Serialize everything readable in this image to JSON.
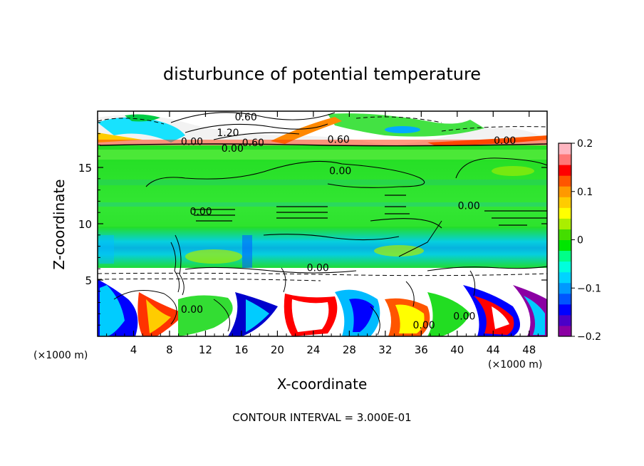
{
  "chart_data": {
    "type": "heatmap",
    "title": "disturbunce of potential temperature",
    "xlabel": "X-coordinate",
    "ylabel": "Z-coordinate",
    "x_unit": "(×1000 m)",
    "y_unit": "(×1000 m)",
    "xlim": [
      0,
      50
    ],
    "ylim": [
      0,
      20
    ],
    "x_ticks": [
      4,
      8,
      12,
      16,
      20,
      24,
      28,
      32,
      36,
      40,
      44,
      48
    ],
    "y_ticks": [
      5,
      10,
      15
    ],
    "colorbar": {
      "range": [
        -0.2,
        0.2
      ],
      "tick_labels": [
        "0.2",
        "0.1",
        "0",
        "−0.1",
        "−0.2"
      ],
      "tick_values": [
        0.2,
        0.1,
        0,
        -0.1,
        -0.2
      ],
      "colors": [
        "#8b00a3",
        "#4b00c8",
        "#0000ff",
        "#0055ff",
        "#0099ff",
        "#00d4ff",
        "#00ffdd",
        "#00ff88",
        "#00e600",
        "#44dd00",
        "#aaee00",
        "#ffff00",
        "#ffcc00",
        "#ff9900",
        "#ff5500",
        "#ff0000",
        "#ff7777",
        "#ffb6c1"
      ]
    },
    "contour_labels": [
      {
        "text": "0.60",
        "x": 16.5,
        "z": 19.5
      },
      {
        "text": "1.20",
        "x": 14.5,
        "z": 18.1
      },
      {
        "text": "0.00",
        "x": 10.5,
        "z": 17.3
      },
      {
        "text": "0.00",
        "x": 15.0,
        "z": 16.7
      },
      {
        "text": "0.60",
        "x": 17.3,
        "z": 17.2
      },
      {
        "text": "0.60",
        "x": 26.8,
        "z": 17.5
      },
      {
        "text": "0.00",
        "x": 45.3,
        "z": 17.4
      },
      {
        "text": "0.00",
        "x": 27.0,
        "z": 14.7
      },
      {
        "text": "0.00",
        "x": 11.5,
        "z": 11.1
      },
      {
        "text": "0.00",
        "x": 41.3,
        "z": 11.6
      },
      {
        "text": "0.00",
        "x": 24.5,
        "z": 6.1
      },
      {
        "text": "0.00",
        "x": 10.5,
        "z": 2.4
      },
      {
        "text": "0.00",
        "x": 36.3,
        "z": 1.0
      },
      {
        "text": "0.00",
        "x": 40.8,
        "z": 1.8
      }
    ],
    "footer": "CONTOUR INTERVAL = 3.000E-01"
  }
}
